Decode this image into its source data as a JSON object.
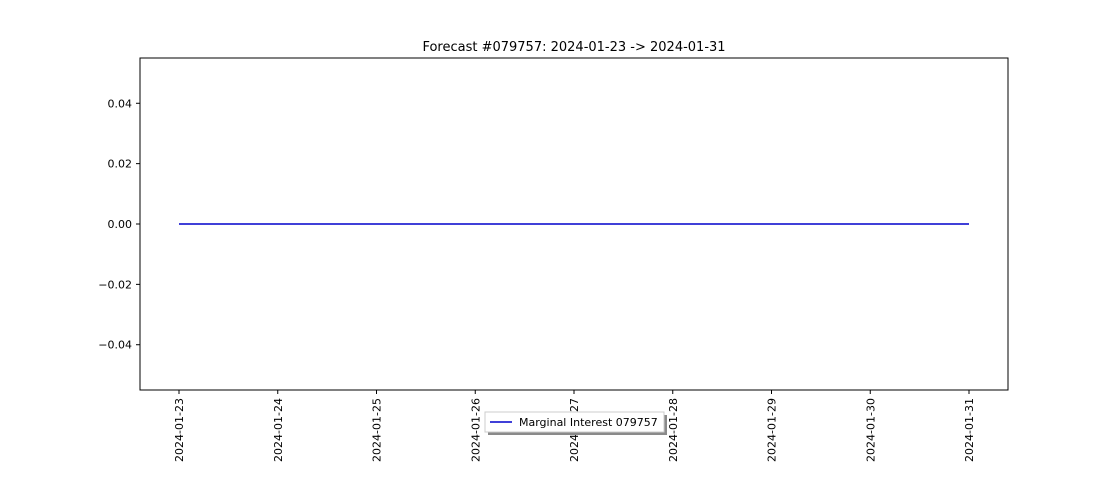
{
  "chart_data": {
    "type": "line",
    "title": "Forecast #079757: 2024-01-23 -> 2024-01-31",
    "xlabel": "",
    "ylabel": "",
    "x": [
      "2024-01-23",
      "2024-01-24",
      "2024-01-25",
      "2024-01-26",
      "2024-01-27",
      "2024-01-28",
      "2024-01-29",
      "2024-01-30",
      "2024-01-31"
    ],
    "x_tick_labels": [
      "2024-01-23",
      "2024-01-24",
      "2024-01-25",
      "2024-01-26",
      "2024-01-27",
      "2024-01-28",
      "2024-01-29",
      "2024-01-30",
      "2024-01-31"
    ],
    "y_ticks": [
      -0.04,
      -0.02,
      0.0,
      0.02,
      0.04
    ],
    "y_tick_labels": [
      "−0.04",
      "−0.02",
      "0.00",
      "0.02",
      "0.04"
    ],
    "ylim": [
      -0.055,
      0.055
    ],
    "grid": false,
    "legend": {
      "placement": "lower-center"
    },
    "series": [
      {
        "name": "Marginal Interest 079757",
        "color": "#0000cc",
        "values": [
          0,
          0,
          0,
          0,
          0,
          0,
          0,
          0,
          0
        ]
      }
    ]
  }
}
